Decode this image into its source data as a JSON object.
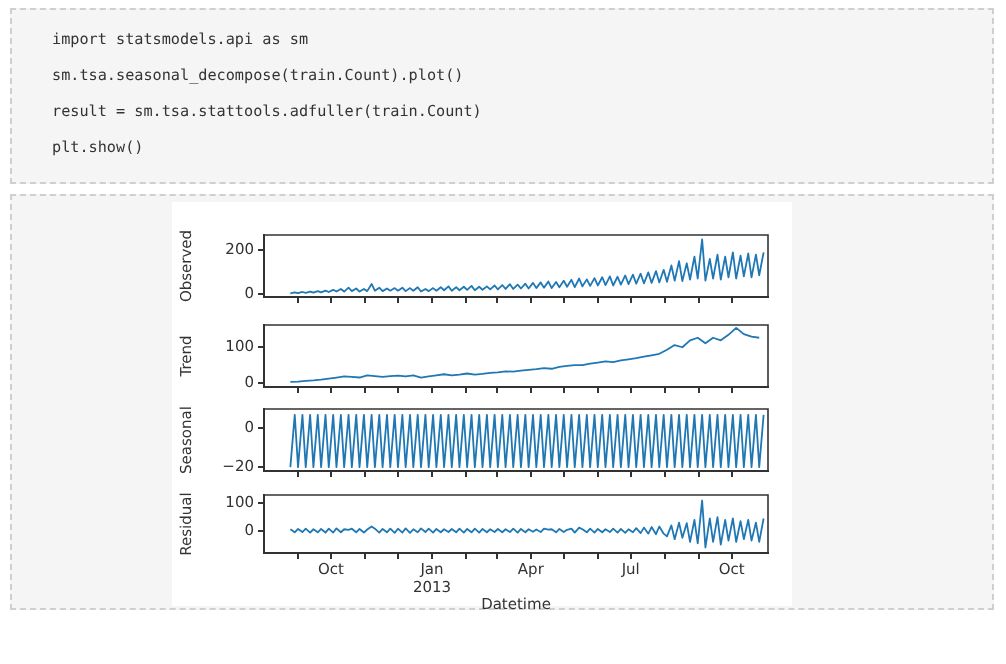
{
  "chart_data": [
    {
      "type": "line",
      "ylabel": "Observed",
      "tick_labels": "y",
      "annotations": [
        "import statsmodels.api as sm",
        "sm.tsa.seasonal_decompose(train.Count).plot()",
        "result = sm.tsa.stattools.adfuller(train.Count)",
        "plt.show()"
      ],
      "x": [
        "2012-08-25",
        "2012-08-29",
        "2012-09-01",
        "2012-09-05",
        "2012-09-08",
        "2012-09-12",
        "2012-09-15",
        "2012-09-19",
        "2012-09-22",
        "2012-09-26",
        "2012-09-29",
        "2012-10-03",
        "2012-10-06",
        "2012-10-10",
        "2012-10-13",
        "2012-10-17",
        "2012-10-20",
        "2012-10-24",
        "2012-10-27",
        "2012-10-31",
        "2012-11-03",
        "2012-11-07",
        "2012-11-10",
        "2012-11-14",
        "2012-11-17",
        "2012-11-21",
        "2012-11-24",
        "2012-11-28",
        "2012-12-01",
        "2012-12-05",
        "2012-12-08",
        "2012-12-12",
        "2012-12-15",
        "2012-12-19",
        "2012-12-22",
        "2012-12-26",
        "2012-12-29",
        "2013-01-02",
        "2013-01-05",
        "2013-01-09",
        "2013-01-12",
        "2013-01-16",
        "2013-01-19",
        "2013-01-23",
        "2013-01-26",
        "2013-01-30",
        "2013-02-02",
        "2013-02-06",
        "2013-02-09",
        "2013-02-13",
        "2013-02-16",
        "2013-02-20",
        "2013-02-23",
        "2013-02-27",
        "2013-03-02",
        "2013-03-06",
        "2013-03-09",
        "2013-03-13",
        "2013-03-16",
        "2013-03-20",
        "2013-03-23",
        "2013-03-27",
        "2013-03-30",
        "2013-04-03",
        "2013-04-06",
        "2013-04-10",
        "2013-04-13",
        "2013-04-17",
        "2013-04-20",
        "2013-04-24",
        "2013-04-27",
        "2013-05-01",
        "2013-05-04",
        "2013-05-08",
        "2013-05-11",
        "2013-05-15",
        "2013-05-18",
        "2013-05-22",
        "2013-05-25",
        "2013-05-29",
        "2013-06-01",
        "2013-06-05",
        "2013-06-08",
        "2013-06-12",
        "2013-06-15",
        "2013-06-19",
        "2013-06-22",
        "2013-06-26",
        "2013-06-29",
        "2013-07-03",
        "2013-07-06",
        "2013-07-10",
        "2013-07-13",
        "2013-07-17",
        "2013-07-20",
        "2013-07-24",
        "2013-07-27",
        "2013-07-31",
        "2013-08-03",
        "2013-08-07",
        "2013-08-10",
        "2013-08-14",
        "2013-08-17",
        "2013-08-21",
        "2013-08-24",
        "2013-08-28",
        "2013-08-31",
        "2013-09-04",
        "2013-09-07",
        "2013-09-11",
        "2013-09-14",
        "2013-09-18",
        "2013-09-21",
        "2013-09-25",
        "2013-09-28",
        "2013-10-02",
        "2013-10-05",
        "2013-10-09",
        "2013-10-12",
        "2013-10-16",
        "2013-10-19",
        "2013-10-23",
        "2013-10-26",
        "2013-10-30"
      ],
      "series": [
        {
          "color": "#1f77b4",
          "values": [
            2,
            6,
            3,
            8,
            4,
            10,
            5,
            12,
            6,
            14,
            8,
            18,
            10,
            22,
            10,
            28,
            12,
            24,
            10,
            22,
            12,
            45,
            14,
            28,
            12,
            24,
            14,
            26,
            14,
            28,
            12,
            26,
            14,
            30,
            10,
            22,
            12,
            26,
            14,
            30,
            16,
            34,
            14,
            30,
            16,
            32,
            18,
            36,
            16,
            32,
            18,
            34,
            20,
            38,
            20,
            40,
            22,
            44,
            22,
            42,
            24,
            46,
            24,
            50,
            26,
            52,
            28,
            56,
            26,
            54,
            30,
            60,
            32,
            64,
            30,
            70,
            34,
            66,
            36,
            72,
            38,
            76,
            40,
            80,
            38,
            78,
            42,
            84,
            44,
            88,
            46,
            92,
            48,
            98,
            50,
            104,
            52,
            110,
            55,
            130,
            60,
            150,
            58,
            140,
            65,
            170,
            70,
            250,
            60,
            160,
            70,
            180,
            65,
            170,
            75,
            190,
            70,
            175,
            80,
            185,
            75,
            180,
            85,
            190
          ]
        }
      ],
      "xlim": [
        "2012-08-01",
        "2013-11-03"
      ],
      "xticks": [
        {
          "value": "2012-09-01",
          "label": null
        },
        {
          "value": "2012-10-01",
          "label": null
        },
        {
          "value": "2012-11-01",
          "label": null
        },
        {
          "value": "2012-12-01",
          "label": null
        },
        {
          "value": "2013-01-01",
          "label": null
        },
        {
          "value": "2013-02-01",
          "label": null
        },
        {
          "value": "2013-03-01",
          "label": null
        },
        {
          "value": "2013-04-01",
          "label": null
        },
        {
          "value": "2013-05-01",
          "label": null
        },
        {
          "value": "2013-06-01",
          "label": null
        },
        {
          "value": "2013-07-01",
          "label": null
        },
        {
          "value": "2013-08-01",
          "label": null
        },
        {
          "value": "2013-09-01",
          "label": null
        },
        {
          "value": "2013-10-01",
          "label": null
        }
      ],
      "ylim": [
        -15,
        270
      ],
      "yticks": [
        0,
        200
      ]
    },
    {
      "type": "line",
      "ylabel": "Trend",
      "tick_labels": "y",
      "x": [
        "2012-08-25",
        "2012-09-01",
        "2012-09-08",
        "2012-09-15",
        "2012-09-22",
        "2012-09-29",
        "2012-10-06",
        "2012-10-13",
        "2012-10-20",
        "2012-10-27",
        "2012-11-03",
        "2012-11-10",
        "2012-11-17",
        "2012-11-24",
        "2012-12-01",
        "2012-12-08",
        "2012-12-15",
        "2012-12-22",
        "2012-12-29",
        "2013-01-05",
        "2013-01-12",
        "2013-01-19",
        "2013-01-26",
        "2013-02-02",
        "2013-02-09",
        "2013-02-16",
        "2013-02-23",
        "2013-03-02",
        "2013-03-09",
        "2013-03-16",
        "2013-03-23",
        "2013-03-30",
        "2013-04-06",
        "2013-04-13",
        "2013-04-20",
        "2013-04-27",
        "2013-05-04",
        "2013-05-11",
        "2013-05-18",
        "2013-05-25",
        "2013-06-01",
        "2013-06-08",
        "2013-06-15",
        "2013-06-22",
        "2013-06-29",
        "2013-07-06",
        "2013-07-13",
        "2013-07-20",
        "2013-07-27",
        "2013-08-03",
        "2013-08-10",
        "2013-08-17",
        "2013-08-24",
        "2013-08-31",
        "2013-09-07",
        "2013-09-14",
        "2013-09-21",
        "2013-09-28",
        "2013-10-05",
        "2013-10-12",
        "2013-10-19",
        "2013-10-26"
      ],
      "series": [
        {
          "color": "#1f77b4",
          "values": [
            4,
            5,
            7,
            8,
            10,
            13,
            16,
            19,
            18,
            16,
            22,
            20,
            18,
            20,
            21,
            19,
            22,
            16,
            19,
            22,
            25,
            22,
            24,
            27,
            24,
            26,
            29,
            30,
            33,
            32,
            35,
            37,
            39,
            42,
            40,
            45,
            48,
            50,
            50,
            54,
            57,
            60,
            58,
            63,
            66,
            69,
            73,
            77,
            81,
            92,
            105,
            99,
            118,
            125,
            110,
            125,
            118,
            133,
            152,
            135,
            128,
            125
          ]
        }
      ],
      "xlim": [
        "2012-08-01",
        "2013-11-03"
      ],
      "xticks": [
        {
          "value": "2012-09-01",
          "label": null
        },
        {
          "value": "2012-10-01",
          "label": null
        },
        {
          "value": "2012-11-01",
          "label": null
        },
        {
          "value": "2012-12-01",
          "label": null
        },
        {
          "value": "2013-01-01",
          "label": null
        },
        {
          "value": "2013-02-01",
          "label": null
        },
        {
          "value": "2013-03-01",
          "label": null
        },
        {
          "value": "2013-04-01",
          "label": null
        },
        {
          "value": "2013-05-01",
          "label": null
        },
        {
          "value": "2013-06-01",
          "label": null
        },
        {
          "value": "2013-07-01",
          "label": null
        },
        {
          "value": "2013-08-01",
          "label": null
        },
        {
          "value": "2013-09-01",
          "label": null
        },
        {
          "value": "2013-10-01",
          "label": null
        }
      ],
      "ylim": [
        -10,
        160
      ],
      "yticks": [
        0,
        100
      ]
    },
    {
      "type": "line",
      "ylabel": "Seasonal",
      "tick_labels": "y",
      "x": [
        "2012-08-25",
        "2012-08-29",
        "2012-09-01",
        "2012-09-05",
        "2012-09-08",
        "2012-09-12",
        "2012-09-15",
        "2012-09-19",
        "2012-09-22",
        "2012-09-26",
        "2012-09-29",
        "2012-10-03",
        "2012-10-06",
        "2012-10-10",
        "2012-10-13",
        "2012-10-17",
        "2012-10-20",
        "2012-10-24",
        "2012-10-27",
        "2012-10-31",
        "2012-11-03",
        "2012-11-07",
        "2012-11-10",
        "2012-11-14",
        "2012-11-17",
        "2012-11-21",
        "2012-11-24",
        "2012-11-28",
        "2012-12-01",
        "2012-12-05",
        "2012-12-08",
        "2012-12-12",
        "2012-12-15",
        "2012-12-19",
        "2012-12-22",
        "2012-12-26",
        "2012-12-29",
        "2013-01-02",
        "2013-01-05",
        "2013-01-09",
        "2013-01-12",
        "2013-01-16",
        "2013-01-19",
        "2013-01-23",
        "2013-01-26",
        "2013-01-30",
        "2013-02-02",
        "2013-02-06",
        "2013-02-09",
        "2013-02-13",
        "2013-02-16",
        "2013-02-20",
        "2013-02-23",
        "2013-02-27",
        "2013-03-02",
        "2013-03-06",
        "2013-03-09",
        "2013-03-13",
        "2013-03-16",
        "2013-03-20",
        "2013-03-23",
        "2013-03-27",
        "2013-03-30",
        "2013-04-03",
        "2013-04-06",
        "2013-04-10",
        "2013-04-13",
        "2013-04-17",
        "2013-04-20",
        "2013-04-24",
        "2013-04-27",
        "2013-05-01",
        "2013-05-04",
        "2013-05-08",
        "2013-05-11",
        "2013-05-15",
        "2013-05-18",
        "2013-05-22",
        "2013-05-25",
        "2013-05-29",
        "2013-06-01",
        "2013-06-05",
        "2013-06-08",
        "2013-06-12",
        "2013-06-15",
        "2013-06-19",
        "2013-06-22",
        "2013-06-26",
        "2013-06-29",
        "2013-07-03",
        "2013-07-06",
        "2013-07-10",
        "2013-07-13",
        "2013-07-17",
        "2013-07-20",
        "2013-07-24",
        "2013-07-27",
        "2013-07-31",
        "2013-08-03",
        "2013-08-07",
        "2013-08-10",
        "2013-08-14",
        "2013-08-17",
        "2013-08-21",
        "2013-08-24",
        "2013-08-28",
        "2013-08-31",
        "2013-09-04",
        "2013-09-07",
        "2013-09-11",
        "2013-09-14",
        "2013-09-18",
        "2013-09-21",
        "2013-09-25",
        "2013-09-28",
        "2013-10-02",
        "2013-10-05",
        "2013-10-09",
        "2013-10-12",
        "2013-10-16",
        "2013-10-19",
        "2013-10-23",
        "2013-10-26",
        "2013-10-30"
      ],
      "series": [
        {
          "color": "#1f77b4",
          "values": [
            -20,
            7,
            -20,
            7,
            -20,
            7,
            -20,
            7,
            -20,
            7,
            -20,
            7,
            -20,
            7,
            -20,
            7,
            -20,
            7,
            -20,
            7,
            -20,
            7,
            -20,
            7,
            -20,
            7,
            -20,
            7,
            -20,
            7,
            -20,
            7,
            -20,
            7,
            -20,
            7,
            -20,
            7,
            -20,
            7,
            -20,
            7,
            -20,
            7,
            -20,
            7,
            -20,
            7,
            -20,
            7,
            -20,
            7,
            -20,
            7,
            -20,
            7,
            -20,
            7,
            -20,
            7,
            -20,
            7,
            -20,
            7,
            -20,
            7,
            -20,
            7,
            -20,
            7,
            -20,
            7,
            -20,
            7,
            -20,
            7,
            -20,
            7,
            -20,
            7,
            -20,
            7,
            -20,
            7,
            -20,
            7,
            -20,
            7,
            -20,
            7,
            -20,
            7,
            -20,
            7,
            -20,
            7,
            -20,
            7,
            -20,
            7,
            -20,
            7,
            -20,
            7,
            -20,
            7,
            -20,
            7,
            -20,
            7,
            -20,
            7,
            -20,
            7,
            -20,
            7,
            -20,
            7,
            -20,
            7,
            -20,
            7,
            -20,
            7
          ]
        }
      ],
      "xlim": [
        "2012-08-01",
        "2013-11-03"
      ],
      "xticks": [
        {
          "value": "2012-09-01",
          "label": null
        },
        {
          "value": "2012-10-01",
          "label": null
        },
        {
          "value": "2012-11-01",
          "label": null
        },
        {
          "value": "2012-12-01",
          "label": null
        },
        {
          "value": "2013-01-01",
          "label": null
        },
        {
          "value": "2013-02-01",
          "label": null
        },
        {
          "value": "2013-03-01",
          "label": null
        },
        {
          "value": "2013-04-01",
          "label": null
        },
        {
          "value": "2013-05-01",
          "label": null
        },
        {
          "value": "2013-06-01",
          "label": null
        },
        {
          "value": "2013-07-01",
          "label": null
        },
        {
          "value": "2013-08-01",
          "label": null
        },
        {
          "value": "2013-09-01",
          "label": null
        },
        {
          "value": "2013-10-01",
          "label": null
        }
      ],
      "ylim": [
        -22,
        10
      ],
      "yticks": [
        {
          "value": -20,
          "label": "−20"
        },
        0
      ]
    },
    {
      "type": "line",
      "ylabel": "Residual",
      "xlabel": "Datetime",
      "x": [
        "2012-08-25",
        "2012-08-29",
        "2012-09-01",
        "2012-09-05",
        "2012-09-08",
        "2012-09-12",
        "2012-09-15",
        "2012-09-19",
        "2012-09-22",
        "2012-09-26",
        "2012-09-29",
        "2012-10-03",
        "2012-10-06",
        "2012-10-10",
        "2012-10-13",
        "2012-10-17",
        "2012-10-20",
        "2012-10-24",
        "2012-10-27",
        "2012-10-31",
        "2012-11-03",
        "2012-11-07",
        "2012-11-10",
        "2012-11-14",
        "2012-11-17",
        "2012-11-21",
        "2012-11-24",
        "2012-11-28",
        "2012-12-01",
        "2012-12-05",
        "2012-12-08",
        "2012-12-12",
        "2012-12-15",
        "2012-12-19",
        "2012-12-22",
        "2012-12-26",
        "2012-12-29",
        "2013-01-02",
        "2013-01-05",
        "2013-01-09",
        "2013-01-12",
        "2013-01-16",
        "2013-01-19",
        "2013-01-23",
        "2013-01-26",
        "2013-01-30",
        "2013-02-02",
        "2013-02-06",
        "2013-02-09",
        "2013-02-13",
        "2013-02-16",
        "2013-02-20",
        "2013-02-23",
        "2013-02-27",
        "2013-03-02",
        "2013-03-06",
        "2013-03-09",
        "2013-03-13",
        "2013-03-16",
        "2013-03-20",
        "2013-03-23",
        "2013-03-27",
        "2013-03-30",
        "2013-04-03",
        "2013-04-06",
        "2013-04-10",
        "2013-04-13",
        "2013-04-17",
        "2013-04-20",
        "2013-04-24",
        "2013-04-27",
        "2013-05-01",
        "2013-05-04",
        "2013-05-08",
        "2013-05-11",
        "2013-05-15",
        "2013-05-18",
        "2013-05-22",
        "2013-05-25",
        "2013-05-29",
        "2013-06-01",
        "2013-06-05",
        "2013-06-08",
        "2013-06-12",
        "2013-06-15",
        "2013-06-19",
        "2013-06-22",
        "2013-06-26",
        "2013-06-29",
        "2013-07-03",
        "2013-07-06",
        "2013-07-10",
        "2013-07-13",
        "2013-07-17",
        "2013-07-20",
        "2013-07-24",
        "2013-07-27",
        "2013-07-31",
        "2013-08-03",
        "2013-08-07",
        "2013-08-10",
        "2013-08-14",
        "2013-08-17",
        "2013-08-21",
        "2013-08-24",
        "2013-08-28",
        "2013-08-31",
        "2013-09-04",
        "2013-09-07",
        "2013-09-11",
        "2013-09-14",
        "2013-09-18",
        "2013-09-21",
        "2013-09-25",
        "2013-09-28",
        "2013-10-02",
        "2013-10-05",
        "2013-10-09",
        "2013-10-12",
        "2013-10-16",
        "2013-10-19",
        "2013-10-23",
        "2013-10-26",
        "2013-10-30"
      ],
      "series": [
        {
          "color": "#1f77b4",
          "values": [
            6,
            -5,
            7,
            -4,
            8,
            -6,
            6,
            -5,
            7,
            -6,
            8,
            -6,
            9,
            -5,
            6,
            4,
            8,
            -5,
            7,
            -6,
            5,
            16,
            8,
            -6,
            7,
            -5,
            8,
            -7,
            8,
            -6,
            9,
            -7,
            6,
            -5,
            9,
            -4,
            8,
            -6,
            7,
            -5,
            6,
            -4,
            7,
            -5,
            8,
            -6,
            7,
            -5,
            8,
            -6,
            7,
            -5,
            6,
            -4,
            7,
            -5,
            6,
            -4,
            8,
            -6,
            7,
            -5,
            6,
            -3,
            5,
            -4,
            8,
            5,
            6,
            -5,
            7,
            -4,
            4,
            8,
            -6,
            12,
            6,
            -5,
            8,
            -6,
            7,
            -5,
            6,
            -4,
            8,
            -6,
            7,
            -7,
            6,
            -5,
            10,
            -8,
            12,
            -10,
            14,
            -12,
            16,
            -10,
            -20,
            20,
            -30,
            30,
            -25,
            28,
            -40,
            40,
            -45,
            110,
            -60,
            45,
            -40,
            50,
            -50,
            40,
            -35,
            45,
            -40,
            35,
            -30,
            40,
            -35,
            30,
            -40,
            45
          ]
        }
      ],
      "xlim": [
        "2012-08-01",
        "2013-11-03"
      ],
      "xticks": [
        {
          "value": "2012-09-01",
          "label": null
        },
        {
          "value": "2012-10-01",
          "label": "Oct"
        },
        {
          "value": "2012-11-01",
          "label": null
        },
        {
          "value": "2012-12-01",
          "label": null
        },
        {
          "value": "2013-01-01",
          "label": "Jan\n2013"
        },
        {
          "value": "2013-02-01",
          "label": null
        },
        {
          "value": "2013-03-01",
          "label": null
        },
        {
          "value": "2013-04-01",
          "label": "Apr"
        },
        {
          "value": "2013-05-01",
          "label": null
        },
        {
          "value": "2013-06-01",
          "label": null
        },
        {
          "value": "2013-07-01",
          "label": "Jul"
        },
        {
          "value": "2013-08-01",
          "label": null
        },
        {
          "value": "2013-09-01",
          "label": null
        },
        {
          "value": "2013-10-01",
          "label": "Oct"
        }
      ],
      "ylim": [
        -80,
        130
      ],
      "yticks": [
        0,
        100
      ]
    }
  ]
}
